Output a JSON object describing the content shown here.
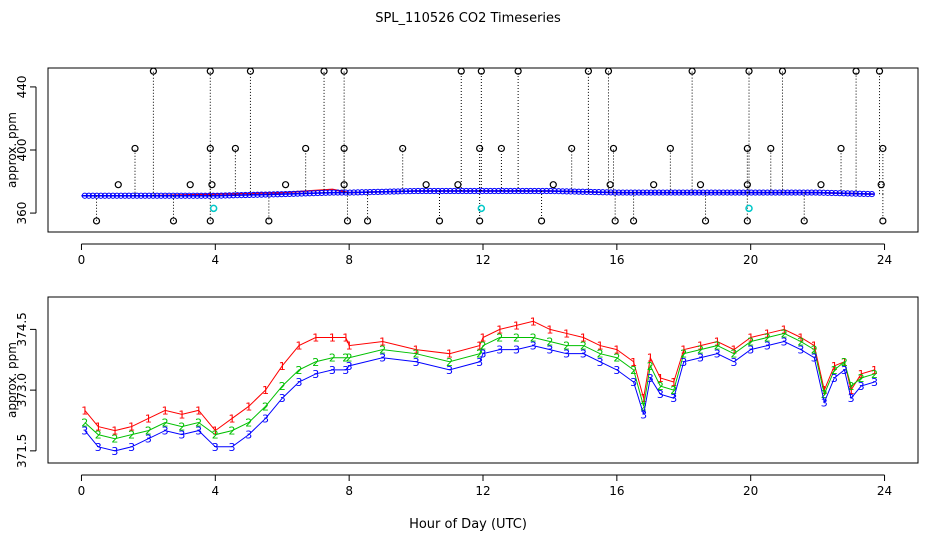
{
  "chart_data": {
    "title": "SPL_110526  CO2 Timeseries",
    "xlabel": "Hour of Day (UTC)",
    "x_ticks": [
      0,
      4,
      8,
      12,
      16,
      20,
      24
    ],
    "xlim": [
      -1,
      25
    ],
    "panels": [
      {
        "name": "upper-panel",
        "type": "scatter",
        "ylabel": "approx. ppm",
        "ylim": [
          348,
          452
        ],
        "y_ticks": [
          360,
          400,
          440
        ],
        "baseline_series": [
          {
            "name": "ref",
            "color": "#ff0000",
            "x": [
              0,
              2,
              4,
              6,
              7.5,
              8,
              10,
              12,
              14,
              16,
              18,
              20,
              22,
              23.7
            ],
            "y": [
              371,
              371,
              372,
              373,
              375,
              373,
              374,
              374,
              374,
              373,
              373,
              373,
              373,
              372
            ]
          },
          {
            "name": "blue",
            "color": "#0000ff",
            "x": [
              0,
              2,
              4,
              6,
              7.5,
              8,
              10,
              12,
              14,
              16,
              18,
              20,
              22,
              23.7
            ],
            "y": [
              371,
              371,
              371,
              372,
              373,
              373,
              374,
              374,
              374,
              373,
              373,
              373,
              373,
              372
            ]
          }
        ],
        "outliers_high_x": [
          2.15,
          3.85,
          5.05,
          7.25,
          7.85,
          11.35,
          11.95,
          13.05,
          15.15,
          15.75,
          18.25,
          19.95,
          20.95,
          23.15,
          23.85
        ],
        "outliers_high_y": 450,
        "outliers_mid_x": [
          1.6,
          3.85,
          4.6,
          6.7,
          7.85,
          9.6,
          11.9,
          12.55,
          14.65,
          15.9,
          17.6,
          19.9,
          20.6,
          22.7,
          23.95
        ],
        "outliers_mid_y": 401,
        "outliers_low_x": [
          0.45,
          2.75,
          3.85,
          5.6,
          7.95,
          8.55,
          10.7,
          11.9,
          13.75,
          15.95,
          16.5,
          18.65,
          19.9,
          21.6,
          23.95
        ],
        "outliers_low_y": 355,
        "small_bumps_x": [
          1.1,
          3.25,
          3.9,
          6.1,
          7.85,
          10.3,
          11.25,
          14.1,
          15.8,
          17.1,
          18.5,
          19.9,
          22.1,
          23.9
        ],
        "small_bumps_y": 378,
        "cyan_points": [
          {
            "x": 3.95,
            "y": 363
          },
          {
            "x": 11.95,
            "y": 363
          },
          {
            "x": 19.95,
            "y": 363
          }
        ]
      },
      {
        "name": "lower-panel",
        "type": "line",
        "ylabel": "approx. ppm",
        "ylim": [
          371.2,
          375.3
        ],
        "y_ticks": [
          371.5,
          373.0,
          374.5
        ],
        "y_tick_labels": [
          "371.5",
          "373.0",
          "374.5"
        ],
        "series": [
          {
            "name": "1",
            "color": "#ff0000",
            "x": [
              0.1,
              0.5,
              1.0,
              1.5,
              2.0,
              2.5,
              3.0,
              3.5,
              4.0,
              4.5,
              5.0,
              5.5,
              6.0,
              6.5,
              7.0,
              7.5,
              7.9,
              8.0,
              9.0,
              10.0,
              11.0,
              11.9,
              12.0,
              12.5,
              13.0,
              13.5,
              14.0,
              14.5,
              15.0,
              15.5,
              16.0,
              16.5,
              16.8,
              17.0,
              17.3,
              17.7,
              18.0,
              18.5,
              19.0,
              19.5,
              20.0,
              20.5,
              21.0,
              21.5,
              21.9,
              22.2,
              22.5,
              22.8,
              23.0,
              23.3,
              23.7
            ],
            "y": [
              372.5,
              372.1,
              372.0,
              372.1,
              372.3,
              372.5,
              372.4,
              372.5,
              372.0,
              372.3,
              372.6,
              373.0,
              373.6,
              374.1,
              374.3,
              374.3,
              374.3,
              374.1,
              374.2,
              374.0,
              373.9,
              374.1,
              374.3,
              374.5,
              374.6,
              374.7,
              374.5,
              374.4,
              374.3,
              374.1,
              374.0,
              373.7,
              372.8,
              373.8,
              373.3,
              373.2,
              374.0,
              374.1,
              374.2,
              374.0,
              374.3,
              374.4,
              374.5,
              374.3,
              374.1,
              373.0,
              373.6,
              373.7,
              373.0,
              373.4,
              373.5
            ]
          },
          {
            "name": "2",
            "color": "#00c000",
            "x": [
              0.1,
              0.5,
              1.0,
              1.5,
              2.0,
              2.5,
              3.0,
              3.5,
              4.0,
              4.5,
              5.0,
              5.5,
              6.0,
              6.5,
              7.0,
              7.5,
              7.9,
              8.0,
              9.0,
              10.0,
              11.0,
              11.9,
              12.0,
              12.5,
              13.0,
              13.5,
              14.0,
              14.5,
              15.0,
              15.5,
              16.0,
              16.5,
              16.8,
              17.0,
              17.3,
              17.7,
              18.0,
              18.5,
              19.0,
              19.5,
              20.0,
              20.5,
              21.0,
              21.5,
              21.9,
              22.2,
              22.5,
              22.8,
              23.0,
              23.3,
              23.7
            ],
            "y": [
              372.2,
              371.9,
              371.8,
              371.9,
              372.0,
              372.2,
              372.1,
              372.2,
              371.9,
              372.0,
              372.2,
              372.6,
              373.1,
              373.5,
              373.7,
              373.8,
              373.8,
              373.8,
              374.0,
              373.9,
              373.7,
              373.9,
              374.1,
              374.3,
              374.3,
              374.3,
              374.2,
              374.1,
              374.1,
              373.9,
              373.8,
              373.5,
              372.6,
              373.6,
              373.1,
              373.0,
              373.9,
              374.0,
              374.1,
              373.9,
              374.2,
              374.3,
              374.4,
              374.2,
              374.0,
              372.9,
              373.5,
              373.7,
              373.1,
              373.3,
              373.4
            ]
          },
          {
            "name": "3",
            "color": "#0000ff",
            "x": [
              0.1,
              0.5,
              1.0,
              1.5,
              2.0,
              2.5,
              3.0,
              3.5,
              4.0,
              4.5,
              5.0,
              5.5,
              6.0,
              6.5,
              7.0,
              7.5,
              7.9,
              8.0,
              9.0,
              10.0,
              11.0,
              11.9,
              12.0,
              12.5,
              13.0,
              13.5,
              14.0,
              14.5,
              15.0,
              15.5,
              16.0,
              16.5,
              16.8,
              17.0,
              17.3,
              17.7,
              18.0,
              18.5,
              19.0,
              19.5,
              20.0,
              20.5,
              21.0,
              21.5,
              21.9,
              22.2,
              22.5,
              22.8,
              23.0,
              23.3,
              23.7
            ],
            "y": [
              372.0,
              371.6,
              371.5,
              371.6,
              371.8,
              372.0,
              371.9,
              372.0,
              371.6,
              371.6,
              371.9,
              372.3,
              372.8,
              373.2,
              373.4,
              373.5,
              373.5,
              373.6,
              373.8,
              373.7,
              373.5,
              373.7,
              373.9,
              374.0,
              374.0,
              374.1,
              374.0,
              373.9,
              373.9,
              373.7,
              373.5,
              373.2,
              372.4,
              373.3,
              372.9,
              372.8,
              373.7,
              373.8,
              373.9,
              373.7,
              374.0,
              374.1,
              374.2,
              374.0,
              373.8,
              372.7,
              373.3,
              373.5,
              372.8,
              373.1,
              373.2
            ]
          }
        ]
      }
    ]
  }
}
